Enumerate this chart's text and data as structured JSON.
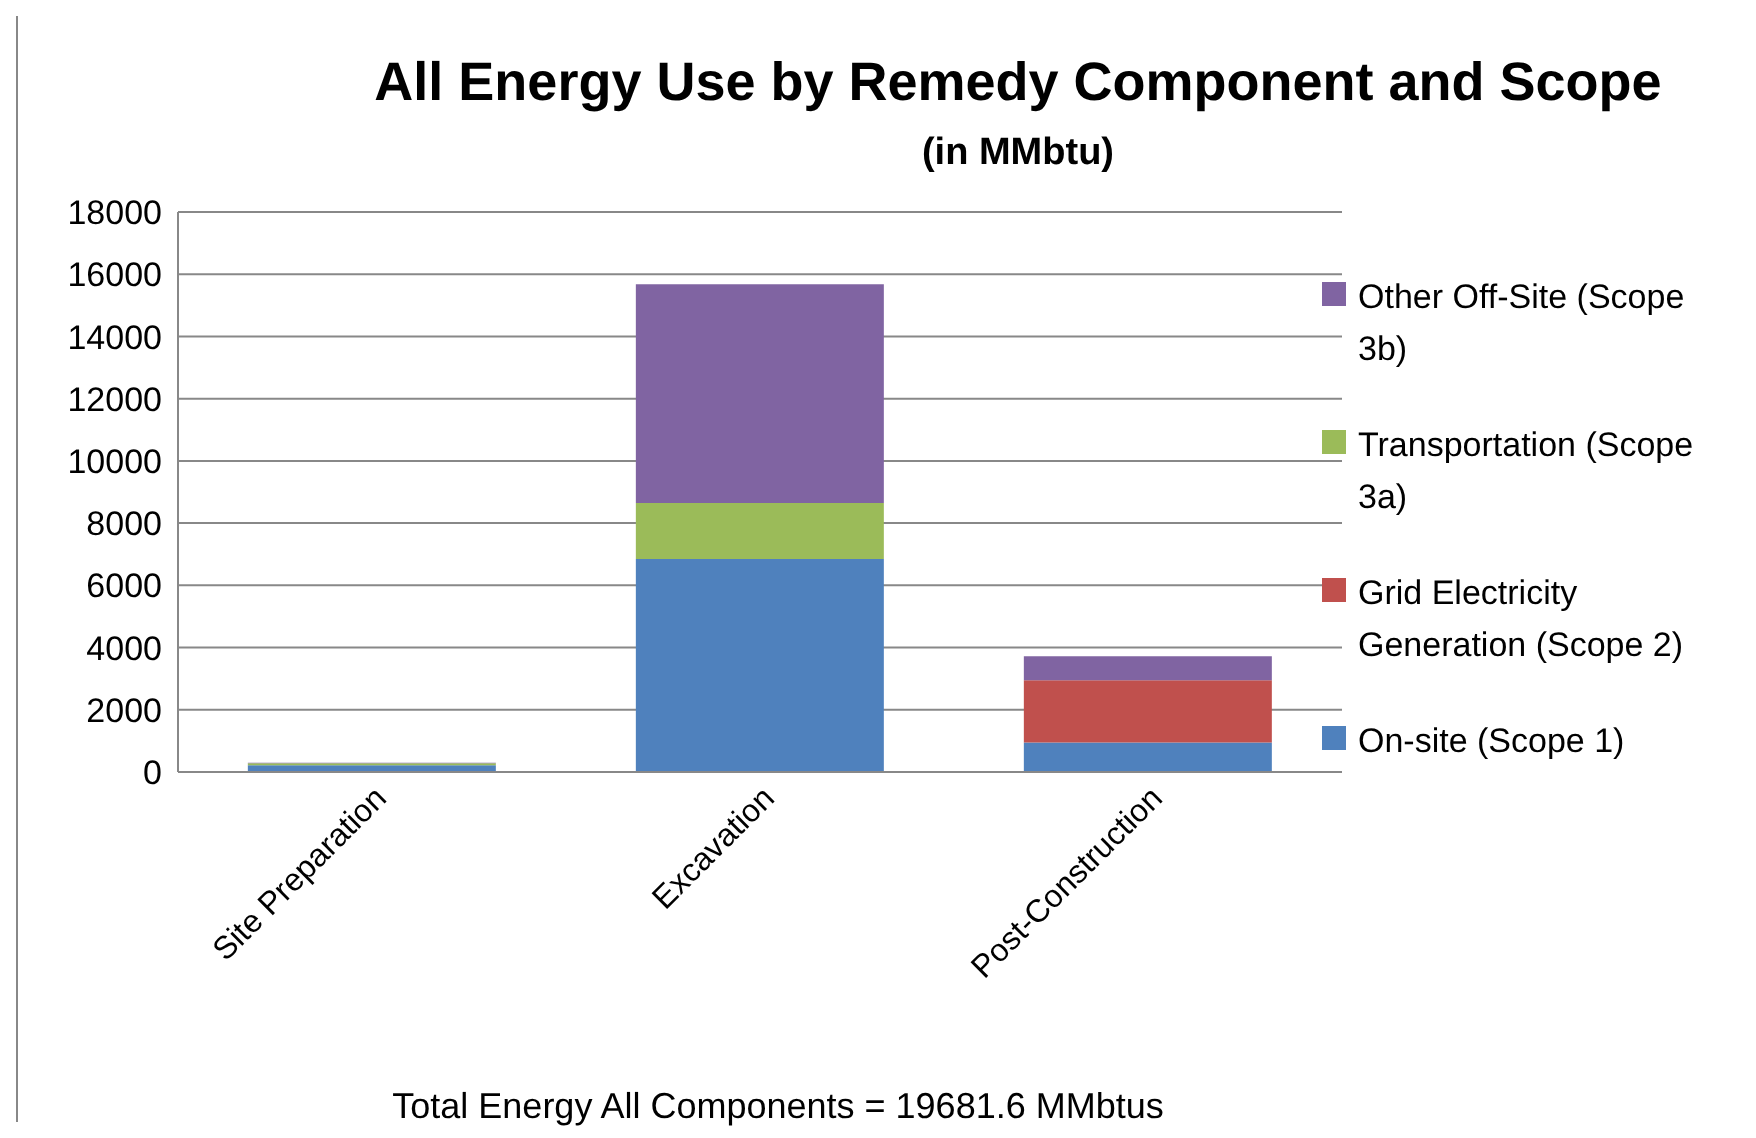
{
  "chart_data": {
    "type": "bar",
    "title": "All Energy Use by Remedy Component and Scope",
    "subtitle": "(in MMbtu)",
    "categories": [
      "Site Preparation",
      "Excavation",
      "Post-Construction"
    ],
    "stacked": true,
    "series": [
      {
        "name": "On-site (Scope 1)",
        "color": "#4f81bd",
        "values": [
          220,
          6850,
          950
        ]
      },
      {
        "name": "Grid Electricity Generation (Scope 2)",
        "color": "#c0504d",
        "values": [
          0,
          0,
          2000
        ]
      },
      {
        "name": "Transportation (Scope 3a)",
        "color": "#9bbb59",
        "values": [
          60,
          1800,
          0
        ]
      },
      {
        "name": "Other Off-Site (Scope 3b)",
        "color": "#8064a2",
        "values": [
          20,
          7030,
          770
        ]
      }
    ],
    "ylim": [
      0,
      18000
    ],
    "yticks": [
      0,
      2000,
      4000,
      6000,
      8000,
      10000,
      12000,
      14000,
      16000,
      18000
    ],
    "grid": "y",
    "legend": "right",
    "annotations": [
      "Total Energy All Components = 19681.6 MMbtus"
    ]
  }
}
